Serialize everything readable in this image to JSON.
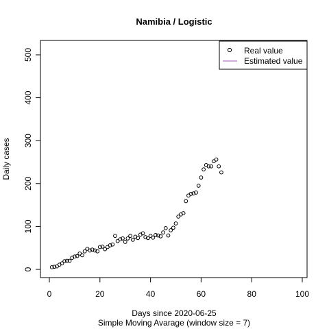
{
  "chart_data": {
    "type": "scatter",
    "title": "Namibia / Logistic",
    "xlabel": "Days since 2020-06-25",
    "subtitle": "Simple Moving Avarage (window size = 7)",
    "ylabel": "Daily cases",
    "xlim": [
      0,
      100
    ],
    "ylim": [
      0,
      530
    ],
    "x_ticks": [
      0,
      20,
      40,
      60,
      80,
      100
    ],
    "y_ticks": [
      0,
      100,
      200,
      300,
      400,
      500
    ],
    "grid": false,
    "legend_position": "top-right",
    "legend": [
      {
        "label": "Real value",
        "marker": "circle"
      },
      {
        "label": "Estimated value",
        "marker": "line",
        "color": "#9b59b6"
      }
    ],
    "series": [
      {
        "name": "Real value",
        "x": [
          1,
          2,
          3,
          4,
          5,
          6,
          7,
          8,
          9,
          10,
          11,
          12,
          13,
          14,
          15,
          16,
          17,
          18,
          19,
          20,
          21,
          22,
          23,
          24,
          25,
          26,
          27,
          28,
          29,
          30,
          31,
          32,
          33,
          34,
          35,
          36,
          37,
          38,
          39,
          40,
          41,
          42,
          43,
          44,
          45,
          46,
          47,
          48,
          49,
          50,
          51,
          52,
          53,
          54,
          55,
          56,
          57,
          58,
          59,
          60,
          61,
          62,
          63,
          64,
          65,
          66,
          67,
          68
        ],
        "y": [
          5,
          6,
          7,
          11,
          14,
          19,
          20,
          20,
          27,
          30,
          31,
          37,
          33,
          42,
          48,
          44,
          46,
          44,
          42,
          52,
          53,
          47,
          52,
          56,
          58,
          78,
          66,
          70,
          72,
          64,
          72,
          78,
          69,
          76,
          73,
          81,
          84,
          75,
          73,
          78,
          74,
          80,
          79,
          77,
          86,
          96,
          79,
          91,
          97,
          107,
          123,
          128,
          131,
          159,
          172,
          176,
          177,
          179,
          195,
          214,
          233,
          243,
          240,
          240,
          252,
          256,
          240,
          226
        ]
      },
      {
        "name": "Estimated value",
        "x": [],
        "y": []
      }
    ]
  }
}
